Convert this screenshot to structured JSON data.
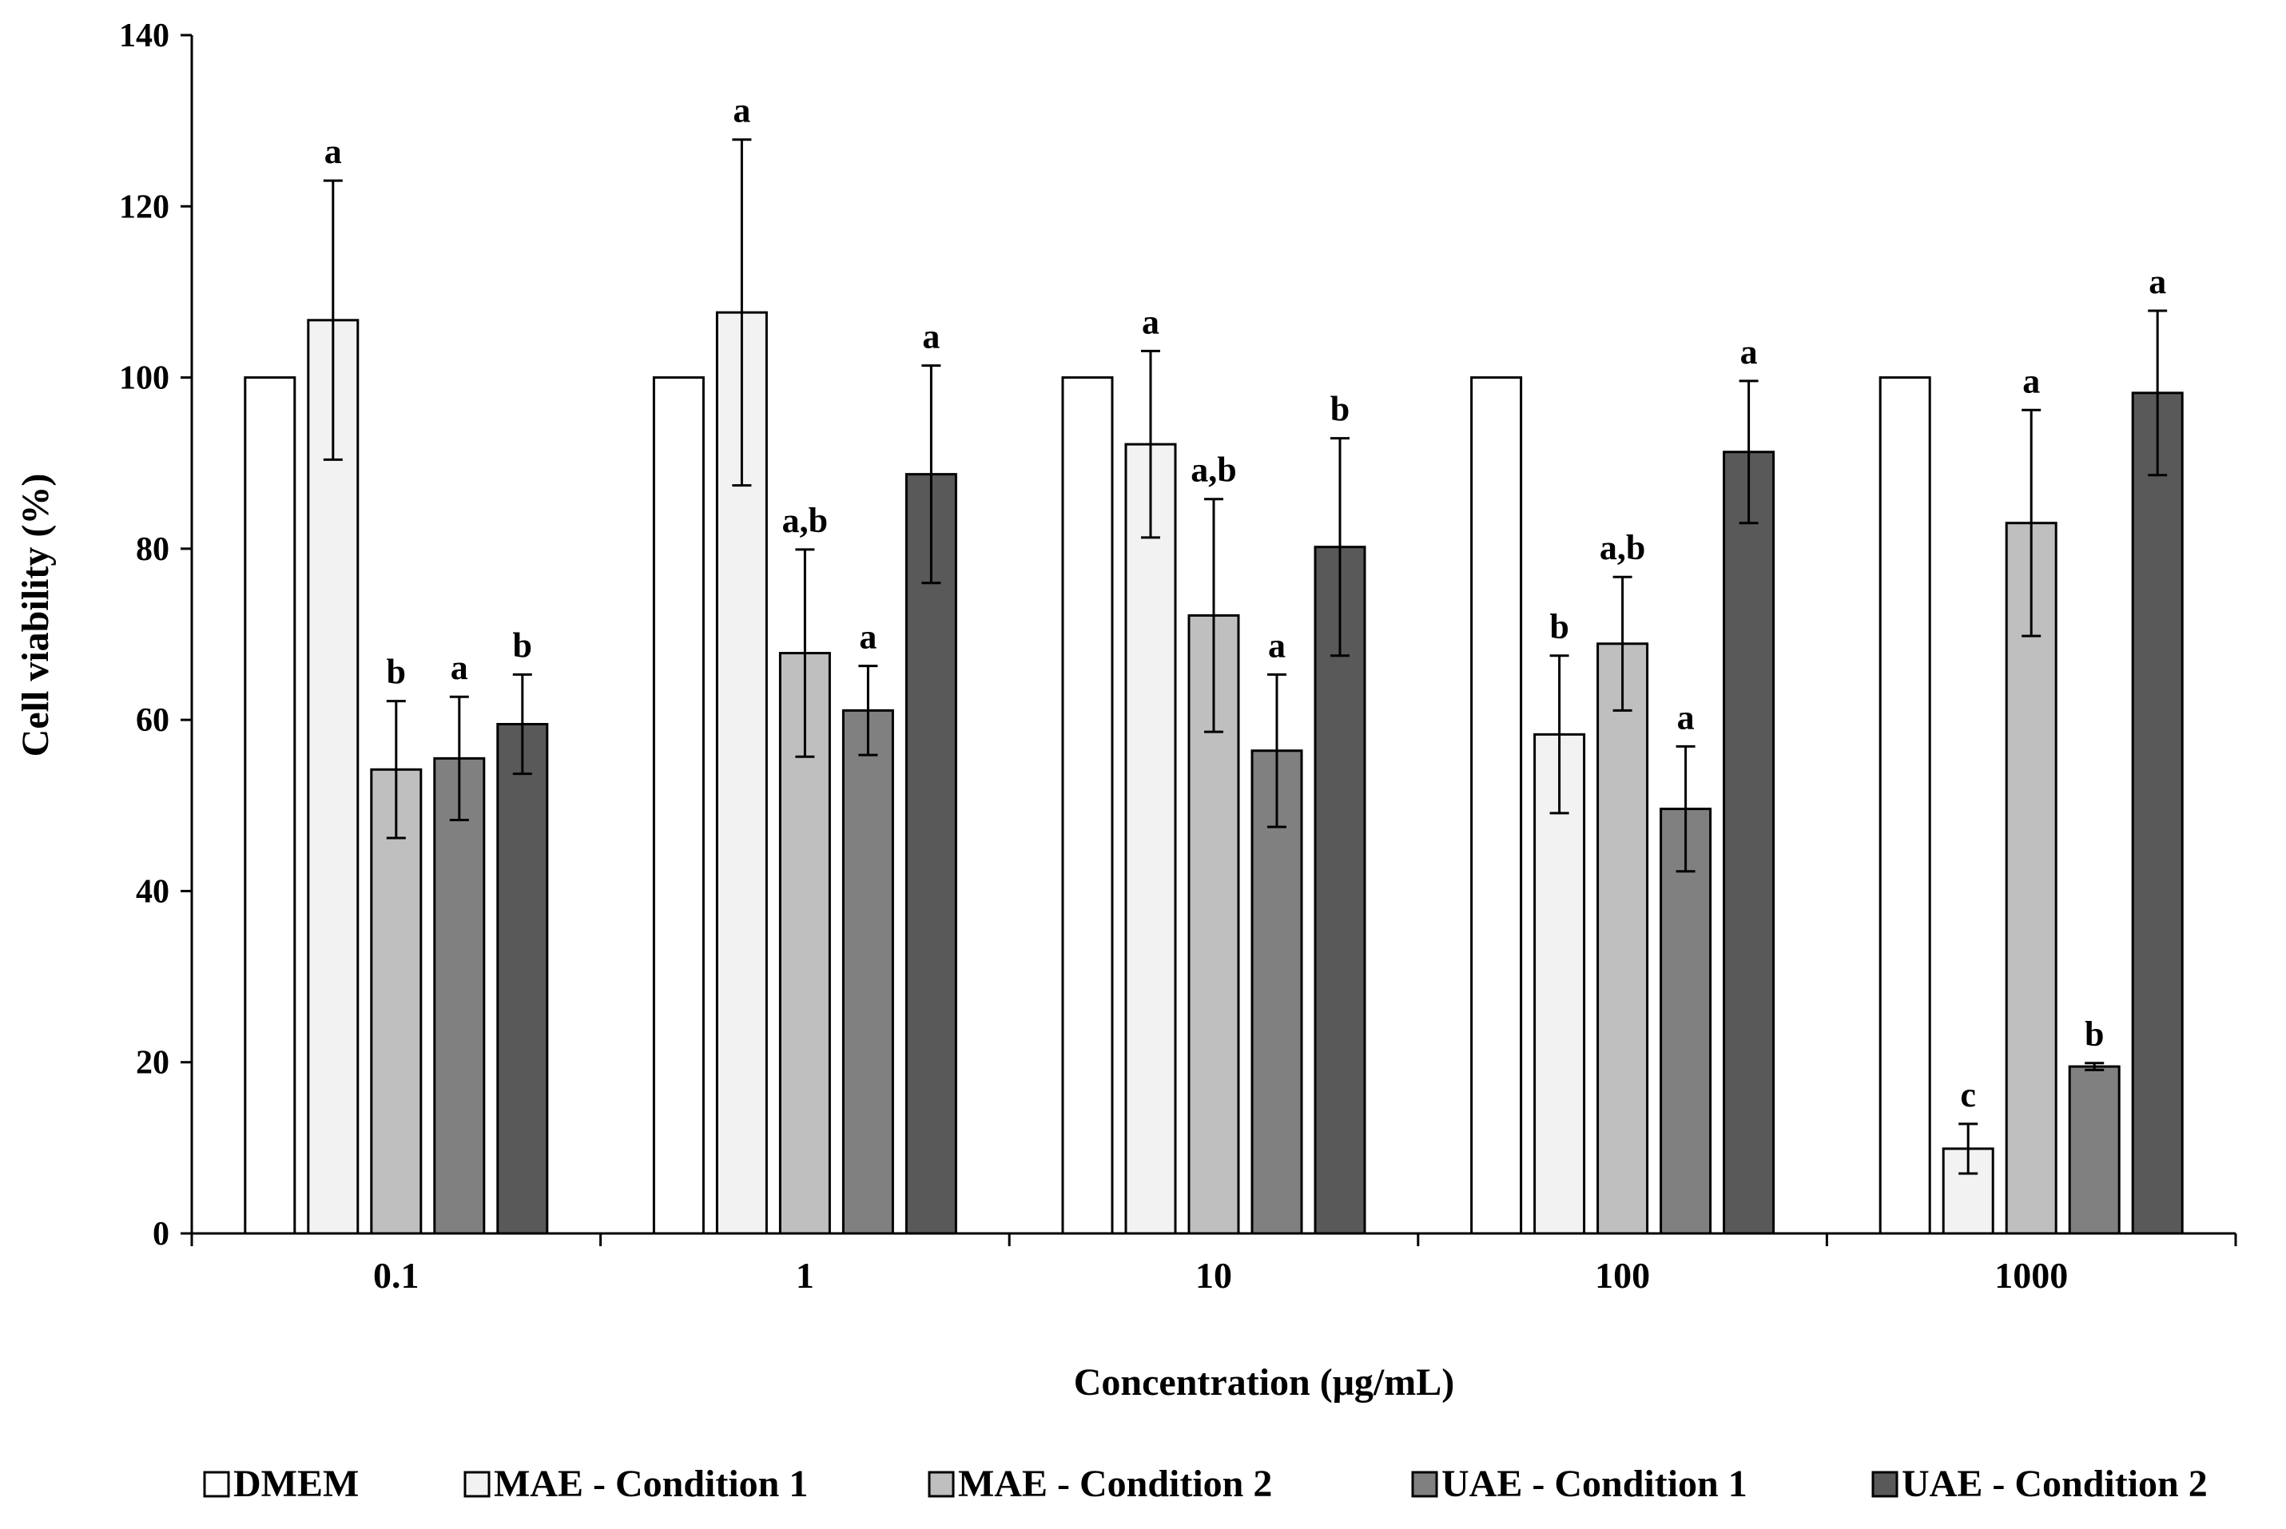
{
  "chart_data": {
    "type": "bar",
    "title": "",
    "xlabel": "Concentration (μg/mL)",
    "ylabel": "Cell viability (%)",
    "ylim": [
      0,
      140
    ],
    "yticks": [
      0,
      20,
      40,
      60,
      80,
      100,
      120,
      140
    ],
    "categories": [
      "0.1",
      "1",
      "10",
      "100",
      "1000"
    ],
    "legend_position": "bottom",
    "series": [
      {
        "name": "DMEM",
        "color": "#ffffff",
        "values": [
          100,
          100,
          100,
          100,
          100
        ],
        "errors": [
          null,
          null,
          null,
          null,
          null
        ],
        "labels": [
          "",
          "",
          "",
          "",
          ""
        ]
      },
      {
        "name": "MAE - Condition 1",
        "color": "#f2f2f2",
        "values": [
          106.7,
          107.6,
          92.2,
          58.3,
          9.9
        ],
        "errors": [
          16.3,
          20.2,
          10.9,
          9.2,
          2.9
        ],
        "labels": [
          "a",
          "a",
          "a",
          "b",
          "c"
        ]
      },
      {
        "name": "MAE - Condition 2",
        "color": "#bfbfbf",
        "values": [
          54.2,
          67.8,
          72.2,
          68.9,
          83.0
        ],
        "errors": [
          8.0,
          12.1,
          13.6,
          7.8,
          13.2
        ],
        "labels": [
          "b",
          "a,b",
          "a,b",
          "a,b",
          "a"
        ]
      },
      {
        "name": "UAE - Condition 1",
        "color": "#808080",
        "values": [
          55.5,
          61.1,
          56.4,
          49.6,
          19.5
        ],
        "errors": [
          7.2,
          5.2,
          8.9,
          7.3,
          0.4
        ],
        "labels": [
          "a",
          "a",
          "a",
          "a",
          "b"
        ]
      },
      {
        "name": "UAE - Condition 2",
        "color": "#595959",
        "values": [
          59.5,
          88.7,
          80.2,
          91.3,
          98.2
        ],
        "errors": [
          5.8,
          12.7,
          12.7,
          8.3,
          9.6
        ],
        "labels": [
          "b",
          "a",
          "b",
          "a",
          "a"
        ]
      }
    ]
  }
}
